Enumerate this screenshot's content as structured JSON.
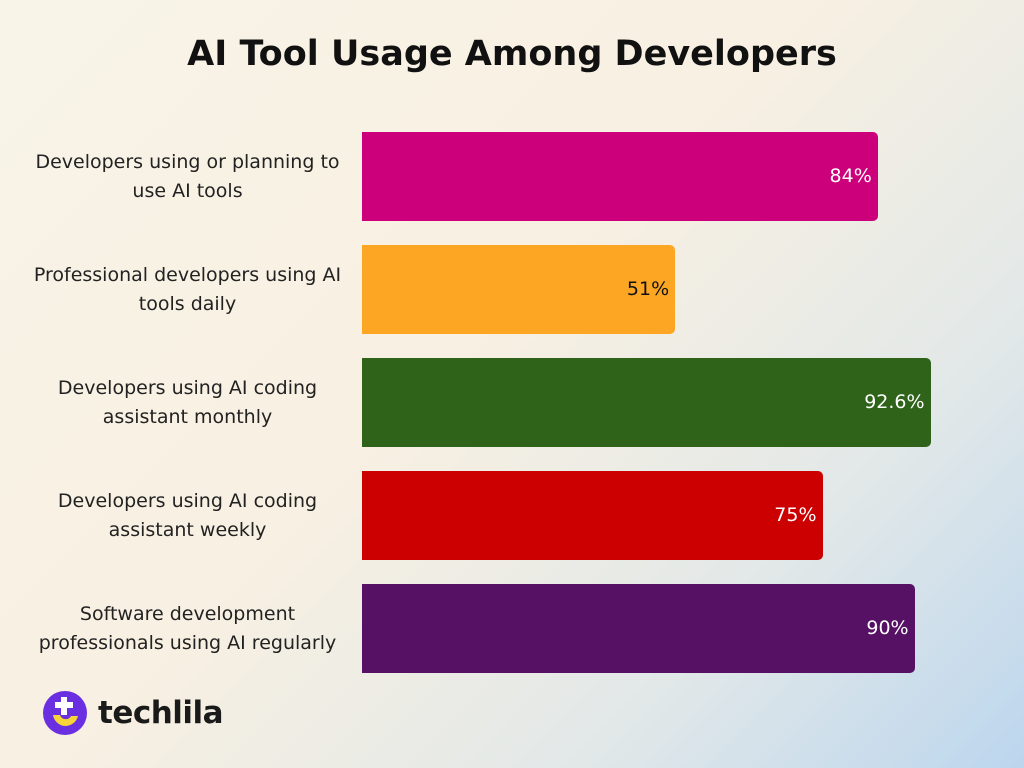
{
  "chart_data": {
    "type": "bar",
    "orientation": "horizontal",
    "title": "AI Tool Usage Among Developers",
    "xlim": [
      0,
      100
    ],
    "categories": [
      "Developers using or planning to use AI tools",
      "Professional developers using AI tools daily",
      "Developers using AI coding assistant monthly",
      "Developers using AI coding assistant weekly",
      "Software development professionals using AI regularly"
    ],
    "values": [
      84,
      51,
      92.6,
      75,
      90
    ],
    "value_labels": [
      "84%",
      "51%",
      "92.6%",
      "75%",
      "90%"
    ],
    "colors": [
      "#cc007a",
      "#fca624",
      "#2f631a",
      "#cc0000",
      "#561164"
    ],
    "label_colors": [
      "#ffffff",
      "#111111",
      "#ffffff",
      "#ffffff",
      "#ffffff"
    ]
  },
  "brand": {
    "name": "techlila",
    "icon": "techlila-logo-icon",
    "color": "#6a2fe0",
    "accent": "#f7d437"
  }
}
